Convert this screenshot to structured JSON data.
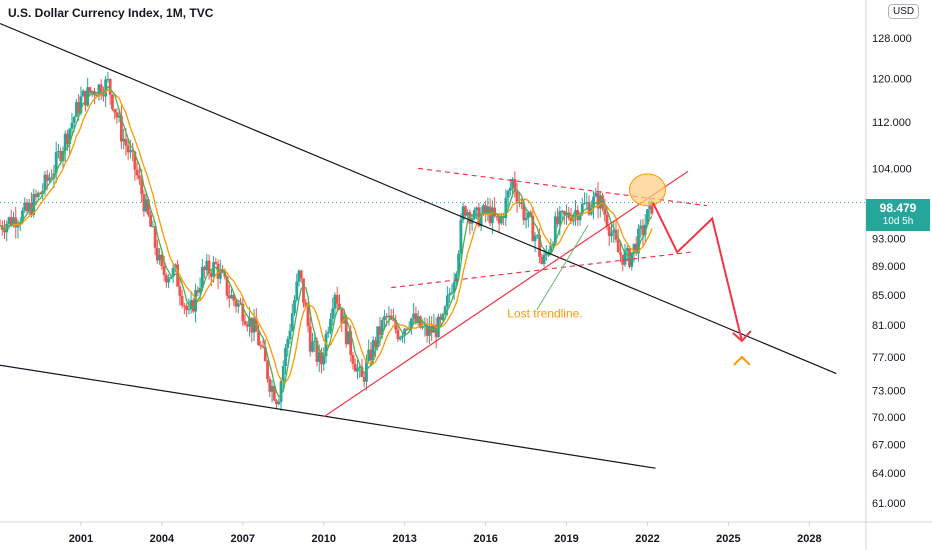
{
  "header": {
    "title": "U.S. Dollar Currency Index, 1M, TVC"
  },
  "currency_button": "USD",
  "price_badge": {
    "price": "98.479",
    "countdown": "10d 5h"
  },
  "annotation": {
    "text": "Lost trendline."
  },
  "colors": {
    "bull": "#26a69a",
    "bear": "#ef5350",
    "trendline": "#131722",
    "red_line": "#f23645",
    "ma_fast": "#4caf50",
    "ma_slow": "#ff9800",
    "ellipse_fill": "#ffcc80",
    "annotation_text": "#ff9800",
    "dotted_price": "#26a69a"
  },
  "chart_data": {
    "type": "candlestick",
    "x_axis": {
      "ticks": [
        "2001",
        "2004",
        "2007",
        "2010",
        "2013",
        "2016",
        "2019",
        "2022",
        "2025",
        "2028"
      ],
      "range": [
        1998.0,
        2030.1
      ]
    },
    "y_axis": {
      "scale": "log",
      "ticks": [
        "61.000",
        "64.000",
        "67.000",
        "70.000",
        "73.000",
        "77.000",
        "81.000",
        "85.000",
        "89.000",
        "93.000",
        "104.000",
        "112.000",
        "120.000",
        "128.000"
      ],
      "tick_values": [
        61,
        64,
        67,
        70,
        73,
        77,
        81,
        85,
        89,
        93,
        104,
        112,
        120,
        128
      ],
      "range": [
        59.2,
        136.0
      ]
    },
    "current_price": 98.479,
    "price_path": [
      [
        1998.0,
        95
      ],
      [
        1998.5,
        96
      ],
      [
        1999.0,
        97
      ],
      [
        1999.5,
        100
      ],
      [
        2000.0,
        104
      ],
      [
        2000.5,
        110
      ],
      [
        2001.0,
        116
      ],
      [
        2001.5,
        118
      ],
      [
        2002.0,
        119
      ],
      [
        2002.5,
        110
      ],
      [
        2003.0,
        104
      ],
      [
        2003.5,
        96
      ],
      [
        2004.0,
        88
      ],
      [
        2004.5,
        88
      ],
      [
        2005.0,
        82
      ],
      [
        2005.5,
        88
      ],
      [
        2006.0,
        89
      ],
      [
        2006.5,
        85
      ],
      [
        2007.0,
        83
      ],
      [
        2007.5,
        80
      ],
      [
        2008.0,
        74
      ],
      [
        2008.3,
        72
      ],
      [
        2008.7,
        80
      ],
      [
        2009.1,
        88
      ],
      [
        2009.5,
        79
      ],
      [
        2009.9,
        76
      ],
      [
        2010.4,
        86
      ],
      [
        2010.9,
        79
      ],
      [
        2011.4,
        74
      ],
      [
        2011.8,
        78
      ],
      [
        2012.3,
        82
      ],
      [
        2012.8,
        80
      ],
      [
        2013.2,
        82
      ],
      [
        2013.8,
        80
      ],
      [
        2014.4,
        81
      ],
      [
        2014.9,
        89
      ],
      [
        2015.2,
        98
      ],
      [
        2015.6,
        96
      ],
      [
        2016.1,
        97
      ],
      [
        2016.5,
        95
      ],
      [
        2017.0,
        102
      ],
      [
        2017.4,
        97
      ],
      [
        2017.9,
        93
      ],
      [
        2018.1,
        89
      ],
      [
        2018.6,
        95
      ],
      [
        2019.2,
        97
      ],
      [
        2019.7,
        98
      ],
      [
        2020.2,
        99
      ],
      [
        2020.5,
        96
      ],
      [
        2020.9,
        91
      ],
      [
        2021.3,
        90
      ],
      [
        2021.8,
        94
      ],
      [
        2022.2,
        98.5
      ]
    ],
    "lines": [
      {
        "name": "upper-descending-trendline",
        "from": [
          1998.0,
          131
        ],
        "to": [
          2029.0,
          75
        ]
      },
      {
        "name": "lower-descending-trendline",
        "from": [
          1998.0,
          76
        ],
        "to": [
          2022.3,
          64.5
        ]
      },
      {
        "name": "rising-trendline",
        "from": [
          2010.0,
          70
        ],
        "to": [
          2023.5,
          103.5
        ]
      },
      {
        "name": "channel-top",
        "from": [
          2013.5,
          104
        ],
        "to": [
          2024.2,
          98
        ]
      },
      {
        "name": "channel-bottom",
        "from": [
          2012.5,
          86
        ],
        "to": [
          2023.6,
          91
        ]
      }
    ],
    "forecast": [
      [
        2022.2,
        98.5
      ],
      [
        2023.1,
        91
      ],
      [
        2024.4,
        96
      ],
      [
        2025.5,
        79
      ]
    ],
    "annotations": [
      {
        "text": "Lost trendline.",
        "x": 2018.2,
        "y": 82
      }
    ]
  }
}
